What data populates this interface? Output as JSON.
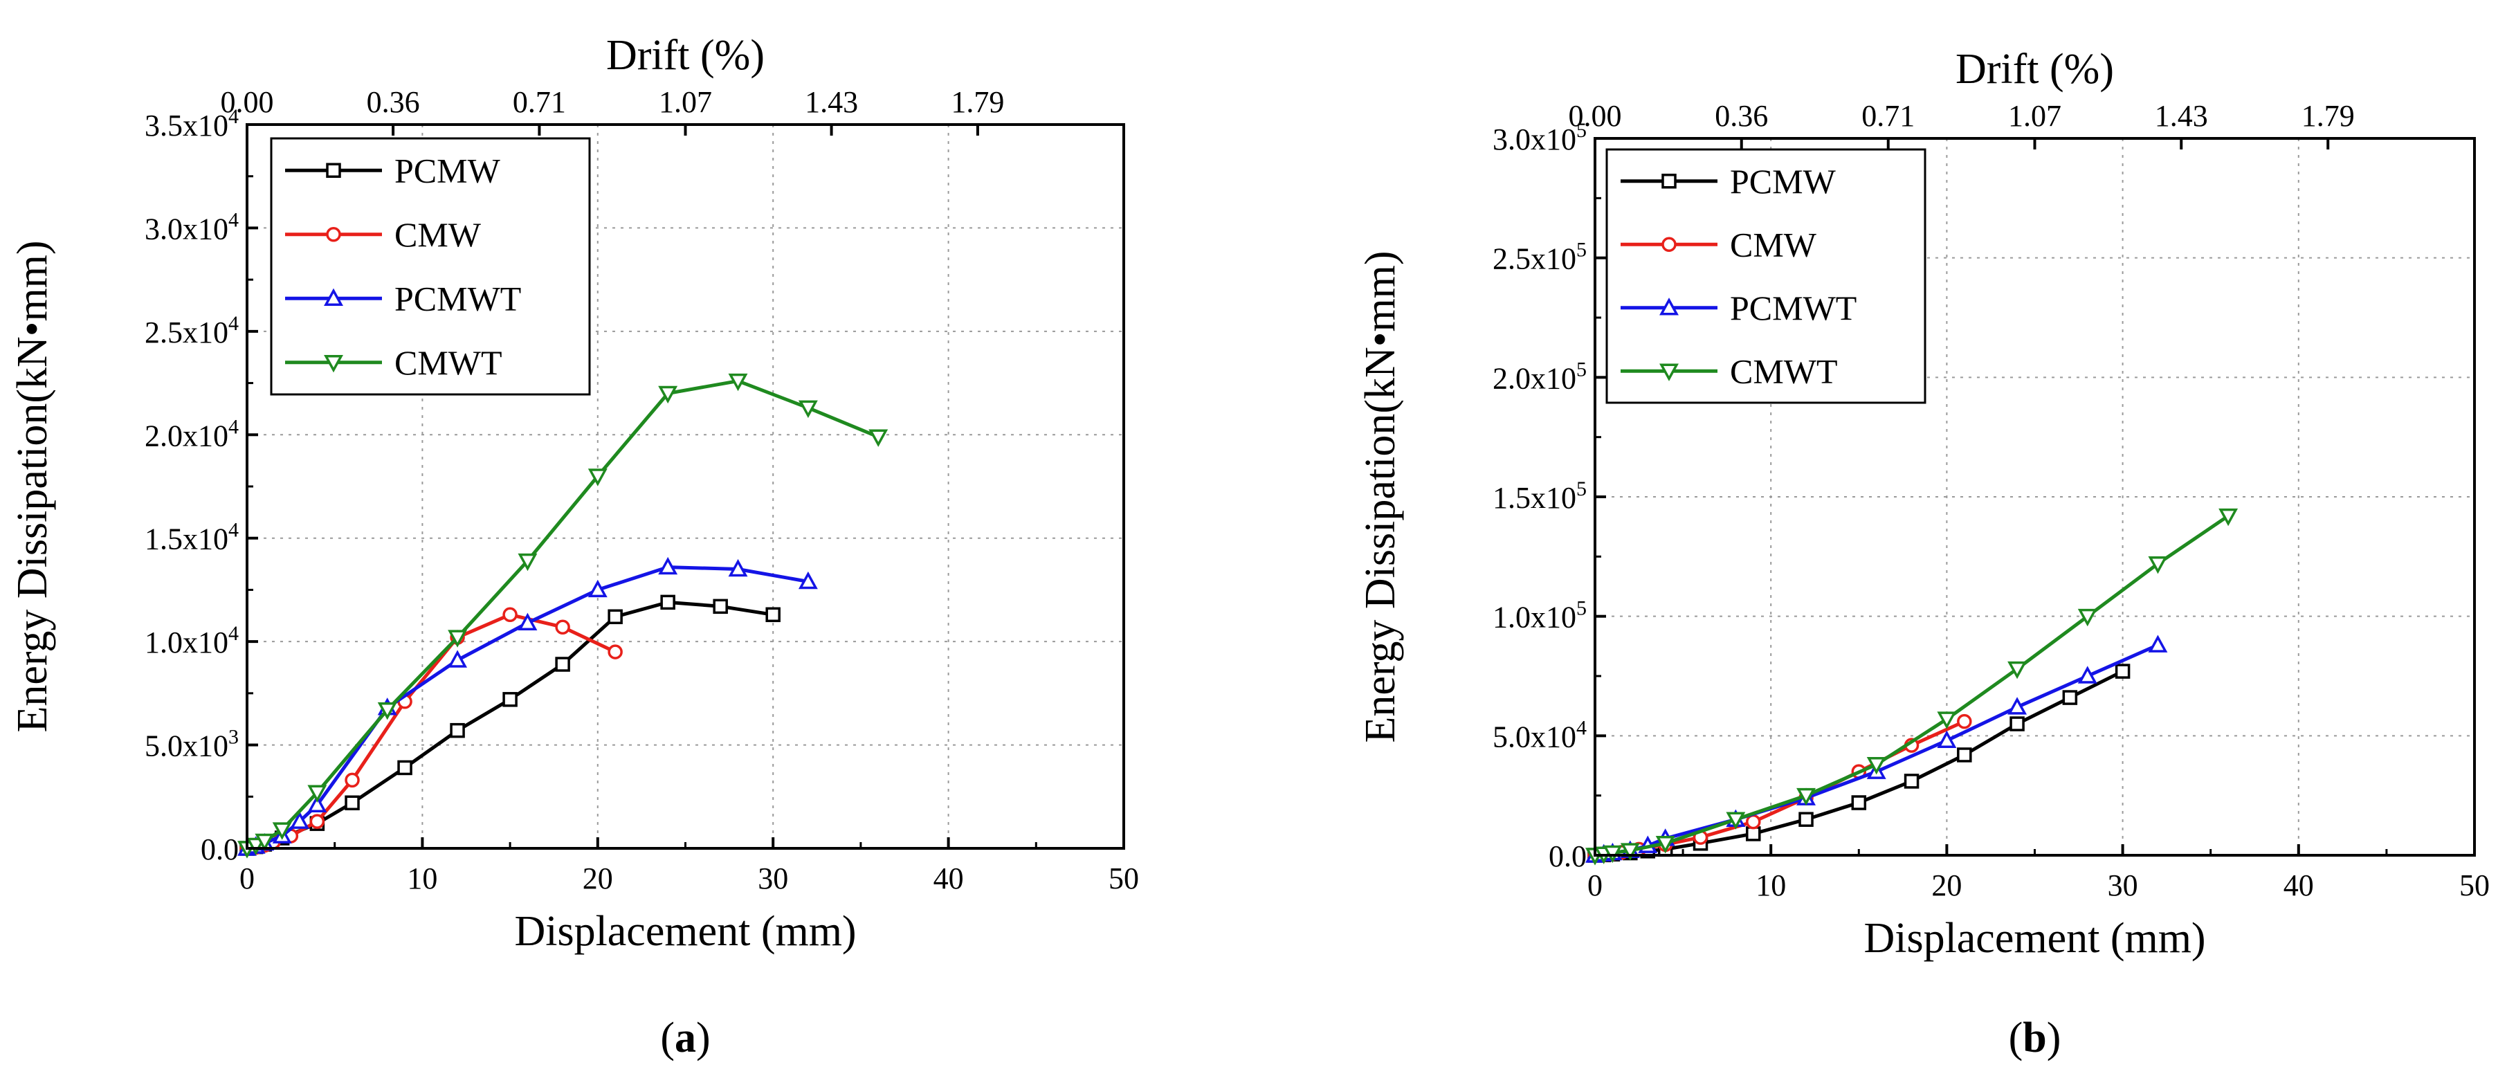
{
  "chart_data": [
    {
      "type": "line",
      "panel_label": "(a)",
      "panel_letter": "a",
      "xlabel": "Displacement (mm)",
      "ylabel": "Energy Dissipation(kN•mm)",
      "x2label": "Drift (%)",
      "xlim": [
        0,
        50
      ],
      "ylim": [
        0,
        35000
      ],
      "x_ticks": [
        "0",
        "10",
        "20",
        "30",
        "40",
        "50"
      ],
      "x_tick_values": [
        0,
        10,
        20,
        30,
        40,
        50
      ],
      "y_ticks": [
        {
          "value": 0,
          "mant": "0.0",
          "exp": ""
        },
        {
          "value": 5000,
          "mant": "5.0x10",
          "exp": "3"
        },
        {
          "value": 10000,
          "mant": "1.0x10",
          "exp": "4"
        },
        {
          "value": 15000,
          "mant": "1.5x10",
          "exp": "4"
        },
        {
          "value": 20000,
          "mant": "2.0x10",
          "exp": "4"
        },
        {
          "value": 25000,
          "mant": "2.5x10",
          "exp": "4"
        },
        {
          "value": 30000,
          "mant": "3.0x10",
          "exp": "4"
        },
        {
          "value": 35000,
          "mant": "3.5x10",
          "exp": "4"
        }
      ],
      "x2_ticks": [
        {
          "value": 0,
          "label": "0.00"
        },
        {
          "value": 8.33,
          "label": "0.36"
        },
        {
          "value": 16.67,
          "label": "0.71"
        },
        {
          "value": 25,
          "label": "1.07"
        },
        {
          "value": 33.33,
          "label": "1.43"
        },
        {
          "value": 41.67,
          "label": "1.79"
        }
      ],
      "grid": true,
      "legend_position": "top-left",
      "series": [
        {
          "name": "PCMW",
          "color": "#000000",
          "marker": "square",
          "x": [
            0,
            0.5,
            1,
            2,
            4,
            6,
            9,
            12,
            15,
            18,
            21,
            24,
            27,
            30
          ],
          "y": [
            0,
            80,
            200,
            500,
            1200,
            2200,
            3900,
            5700,
            7200,
            8900,
            11200,
            11900,
            11700,
            11300
          ]
        },
        {
          "name": "CMW",
          "color": "#e8201a",
          "marker": "circle",
          "x": [
            0,
            0.5,
            1,
            1.5,
            2.5,
            4,
            6,
            9,
            12,
            15,
            18,
            21
          ],
          "y": [
            0,
            50,
            150,
            300,
            600,
            1300,
            3300,
            7100,
            10200,
            11300,
            10700,
            9500
          ]
        },
        {
          "name": "PCMWT",
          "color": "#1414e6",
          "marker": "triangle-up",
          "x": [
            0,
            0.5,
            1,
            2,
            3,
            4,
            8,
            12,
            16,
            20,
            24,
            28,
            32
          ],
          "y": [
            0,
            100,
            250,
            600,
            1300,
            2100,
            6800,
            9100,
            10900,
            12500,
            13600,
            13500,
            12900
          ]
        },
        {
          "name": "CMWT",
          "color": "#1f8a1f",
          "marker": "triangle-down",
          "x": [
            0,
            0.5,
            1,
            2,
            4,
            8,
            12,
            16,
            20,
            24,
            28,
            32,
            36
          ],
          "y": [
            0,
            150,
            350,
            900,
            2700,
            6700,
            10200,
            13900,
            18000,
            22000,
            22600,
            21300,
            19900
          ]
        }
      ]
    },
    {
      "type": "line",
      "panel_label": "(b)",
      "panel_letter": "b",
      "xlabel": "Displacement (mm)",
      "ylabel": "Energy Dissipation(kN•mm)",
      "x2label": "Drift (%)",
      "xlim": [
        0,
        50
      ],
      "ylim": [
        0,
        300000
      ],
      "x_ticks": [
        "0",
        "10",
        "20",
        "30",
        "40",
        "50"
      ],
      "x_tick_values": [
        0,
        10,
        20,
        30,
        40,
        50
      ],
      "y_ticks": [
        {
          "value": 0,
          "mant": "0.0",
          "exp": ""
        },
        {
          "value": 50000,
          "mant": "5.0x10",
          "exp": "4"
        },
        {
          "value": 100000,
          "mant": "1.0x10",
          "exp": "5"
        },
        {
          "value": 150000,
          "mant": "1.5x10",
          "exp": "5"
        },
        {
          "value": 200000,
          "mant": "2.0x10",
          "exp": "5"
        },
        {
          "value": 250000,
          "mant": "2.5x10",
          "exp": "5"
        },
        {
          "value": 300000,
          "mant": "3.0x10",
          "exp": "5"
        }
      ],
      "x2_ticks": [
        {
          "value": 0,
          "label": "0.00"
        },
        {
          "value": 8.33,
          "label": "0.36"
        },
        {
          "value": 16.67,
          "label": "0.71"
        },
        {
          "value": 25,
          "label": "1.07"
        },
        {
          "value": 33.33,
          "label": "1.43"
        },
        {
          "value": 41.67,
          "label": "1.79"
        }
      ],
      "grid": true,
      "legend_position": "top-left",
      "series": [
        {
          "name": "PCMW",
          "color": "#000000",
          "marker": "square",
          "x": [
            0,
            0.5,
            1,
            2,
            3,
            4,
            6,
            9,
            12,
            15,
            18,
            21,
            24,
            27,
            30
          ],
          "y": [
            0,
            200,
            500,
            1000,
            1800,
            2500,
            5000,
            9000,
            15000,
            22000,
            31000,
            42000,
            55000,
            66000,
            77000
          ]
        },
        {
          "name": "CMW",
          "color": "#e8201a",
          "marker": "circle",
          "x": [
            0,
            0.5,
            1,
            1.5,
            2.5,
            4,
            6,
            9,
            12,
            15,
            18,
            21
          ],
          "y": [
            0,
            300,
            700,
            1200,
            2500,
            4500,
            7500,
            14000,
            24000,
            35000,
            46000,
            56000
          ]
        },
        {
          "name": "PCMWT",
          "color": "#1414e6",
          "marker": "triangle-up",
          "x": [
            0,
            0.5,
            1,
            2,
            3,
            4,
            8,
            12,
            16,
            20,
            24,
            28,
            32
          ],
          "y": [
            0,
            500,
            1000,
            2000,
            4000,
            7000,
            15000,
            24000,
            35000,
            48000,
            62000,
            75000,
            88000
          ]
        },
        {
          "name": "CMWT",
          "color": "#1f8a1f",
          "marker": "triangle-down",
          "x": [
            0,
            0.5,
            1,
            2,
            4,
            8,
            12,
            16,
            20,
            24,
            28,
            32,
            36
          ],
          "y": [
            0,
            500,
            1000,
            2000,
            5000,
            15000,
            25000,
            38000,
            57000,
            78000,
            100000,
            122000,
            142000
          ]
        }
      ]
    }
  ]
}
